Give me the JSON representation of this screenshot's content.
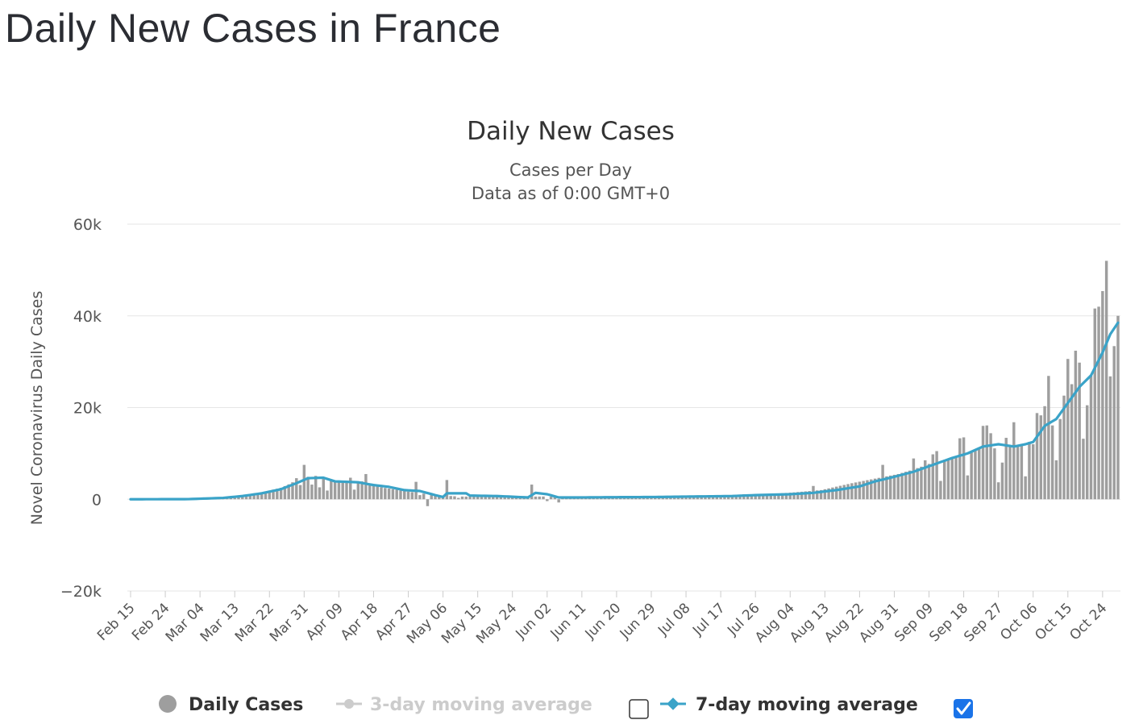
{
  "page": {
    "heading": "Daily New Cases in France"
  },
  "colors": {
    "bars": "#9e9e9e",
    "line": "#3aa3c8",
    "hidden": "#cccccc",
    "grid": "#e6e6e6",
    "checkbox": "#1a73e8"
  },
  "chart_data": {
    "type": "bar+line",
    "title": "Daily New Cases",
    "subtitle": [
      "Cases per Day",
      "Data as of 0:00 GMT+0"
    ],
    "ylabel": "Novel Coronavirus Daily Cases",
    "xlabel": "",
    "ylim": [
      -20000,
      60000
    ],
    "yticks": [
      -20000,
      0,
      20000,
      40000,
      60000
    ],
    "ytick_labels": [
      "−20k",
      "0",
      "20k",
      "40k",
      "60k"
    ],
    "x_start": "Feb 15",
    "x_end": "Oct 28",
    "x_tick_labels": [
      "Feb 15",
      "Feb 24",
      "Mar 04",
      "Mar 13",
      "Mar 22",
      "Mar 31",
      "Apr 09",
      "Apr 18",
      "Apr 27",
      "May 06",
      "May 15",
      "May 24",
      "Jun 02",
      "Jun 11",
      "Jun 20",
      "Jun 29",
      "Jul 08",
      "Jul 17",
      "Jul 26",
      "Aug 04",
      "Aug 13",
      "Aug 22",
      "Aug 31",
      "Sep 09",
      "Sep 18",
      "Sep 27",
      "Oct 06",
      "Oct 15",
      "Oct 24"
    ],
    "grid": true,
    "legend_position": "bottom",
    "series": [
      {
        "name": "Daily Cases",
        "kind": "bar",
        "visible": true,
        "anchors": [
          [
            "Feb 15",
            0
          ],
          [
            "Mar 01",
            50
          ],
          [
            "Mar 10",
            300
          ],
          [
            "Mar 15",
            800
          ],
          [
            "Mar 20",
            1500
          ],
          [
            "Mar 25",
            2500
          ],
          [
            "Mar 29",
            4000
          ],
          [
            "Apr 02",
            4500
          ],
          [
            "Apr 08",
            4000
          ],
          [
            "Apr 14",
            3600
          ],
          [
            "Apr 20",
            2600
          ],
          [
            "Apr 26",
            1800
          ],
          [
            "May 02",
            1100
          ],
          [
            "May 06",
            800
          ],
          [
            "May 10",
            600
          ],
          [
            "May 20",
            500
          ],
          [
            "Jun 01",
            600
          ],
          [
            "Jun 10",
            450
          ],
          [
            "Jun 20",
            450
          ],
          [
            "Jul 01",
            500
          ],
          [
            "Jul 15",
            600
          ],
          [
            "Jul 26",
            900
          ],
          [
            "Aug 05",
            1500
          ],
          [
            "Aug 12",
            2000
          ],
          [
            "Aug 20",
            3500
          ],
          [
            "Aug 26",
            4500
          ],
          [
            "Sep 01",
            5500
          ],
          [
            "Sep 05",
            6500
          ],
          [
            "Sep 10",
            8000
          ],
          [
            "Sep 15",
            9000
          ],
          [
            "Sep 20",
            10500
          ],
          [
            "Sep 25",
            12000
          ],
          [
            "Sep 30",
            11500
          ],
          [
            "Oct 03",
            12000
          ],
          [
            "Oct 07",
            13000
          ],
          [
            "Oct 10",
            16000
          ],
          [
            "Oct 13",
            17500
          ],
          [
            "Oct 16",
            22000
          ],
          [
            "Oct 19",
            25000
          ],
          [
            "Oct 22",
            28000
          ],
          [
            "Oct 25",
            38000
          ],
          [
            "Oct 28",
            40000
          ]
        ],
        "spikes": [
          [
            "Mar 28",
            3700
          ],
          [
            "Mar 29",
            4600
          ],
          [
            "Mar 30",
            3100
          ],
          [
            "Mar 31",
            7500
          ],
          [
            "Apr 01",
            4900
          ],
          [
            "Apr 02",
            3200
          ],
          [
            "Apr 03",
            5100
          ],
          [
            "Apr 04",
            2600
          ],
          [
            "Apr 05",
            4500
          ],
          [
            "Apr 06",
            1900
          ],
          [
            "Apr 12",
            4700
          ],
          [
            "Apr 13",
            2100
          ],
          [
            "Apr 15",
            3900
          ],
          [
            "Apr 16",
            5500
          ],
          [
            "Apr 29",
            3800
          ],
          [
            "Apr 30",
            900
          ],
          [
            "May 02",
            -1500
          ],
          [
            "May 07",
            4200
          ],
          [
            "May 10",
            300
          ],
          [
            "May 29",
            3200
          ],
          [
            "Jun 02",
            -400
          ],
          [
            "Jun 05",
            -700
          ],
          [
            "Jul 23",
            1100
          ],
          [
            "Aug 10",
            2900
          ],
          [
            "Aug 28",
            7500
          ],
          [
            "Sep 05",
            8900
          ],
          [
            "Sep 08",
            8500
          ],
          [
            "Sep 10",
            9800
          ],
          [
            "Sep 11",
            10500
          ],
          [
            "Sep 12",
            4000
          ],
          [
            "Sep 17",
            13300
          ],
          [
            "Sep 18",
            13500
          ],
          [
            "Sep 19",
            5200
          ],
          [
            "Sep 23",
            16000
          ],
          [
            "Sep 24",
            16100
          ],
          [
            "Sep 25",
            14400
          ],
          [
            "Sep 26",
            11100
          ],
          [
            "Sep 27",
            3700
          ],
          [
            "Sep 28",
            8000
          ],
          [
            "Sep 29",
            13400
          ],
          [
            "Oct 01",
            16800
          ],
          [
            "Oct 04",
            5000
          ],
          [
            "Oct 06",
            12000
          ],
          [
            "Oct 07",
            18800
          ],
          [
            "Oct 08",
            18300
          ],
          [
            "Oct 09",
            20300
          ],
          [
            "Oct 10",
            26900
          ],
          [
            "Oct 11",
            16100
          ],
          [
            "Oct 12",
            8500
          ],
          [
            "Oct 14",
            22600
          ],
          [
            "Oct 15",
            30600
          ],
          [
            "Oct 16",
            25100
          ],
          [
            "Oct 17",
            32400
          ],
          [
            "Oct 18",
            29800
          ],
          [
            "Oct 19",
            13200
          ],
          [
            "Oct 20",
            20500
          ],
          [
            "Oct 22",
            41600
          ],
          [
            "Oct 23",
            42000
          ],
          [
            "Oct 24",
            45400
          ],
          [
            "Oct 25",
            52000
          ],
          [
            "Oct 26",
            26800
          ],
          [
            "Oct 27",
            33400
          ]
        ]
      },
      {
        "name": "3-day moving average",
        "kind": "line",
        "visible": false
      },
      {
        "name": "7-day moving average",
        "kind": "line",
        "visible": true,
        "anchors": [
          [
            "Feb 15",
            0
          ],
          [
            "Mar 01",
            30
          ],
          [
            "Mar 10",
            300
          ],
          [
            "Mar 15",
            700
          ],
          [
            "Mar 20",
            1300
          ],
          [
            "Mar 25",
            2200
          ],
          [
            "Mar 29",
            3500
          ],
          [
            "Apr 01",
            4600
          ],
          [
            "Apr 05",
            4700
          ],
          [
            "Apr 08",
            3900
          ],
          [
            "Apr 14",
            3700
          ],
          [
            "Apr 18",
            3100
          ],
          [
            "Apr 22",
            2700
          ],
          [
            "Apr 26",
            2000
          ],
          [
            "Apr 30",
            1800
          ],
          [
            "May 04",
            900
          ],
          [
            "May 06",
            500
          ],
          [
            "May 07",
            1300
          ],
          [
            "May 12",
            1300
          ],
          [
            "May 13",
            800
          ],
          [
            "May 20",
            700
          ],
          [
            "May 28",
            400
          ],
          [
            "May 30",
            1400
          ],
          [
            "Jun 02",
            1100
          ],
          [
            "Jun 05",
            400
          ],
          [
            "Jun 10",
            400
          ],
          [
            "Jun 20",
            450
          ],
          [
            "Jul 01",
            500
          ],
          [
            "Jul 10",
            600
          ],
          [
            "Jul 20",
            700
          ],
          [
            "Jul 26",
            900
          ],
          [
            "Aug 04",
            1100
          ],
          [
            "Aug 10",
            1400
          ],
          [
            "Aug 16",
            2000
          ],
          [
            "Aug 22",
            2800
          ],
          [
            "Aug 26",
            3900
          ],
          [
            "Aug 31",
            4900
          ],
          [
            "Sep 05",
            6000
          ],
          [
            "Sep 10",
            7500
          ],
          [
            "Sep 15",
            9000
          ],
          [
            "Sep 19",
            10000
          ],
          [
            "Sep 23",
            11500
          ],
          [
            "Sep 27",
            12000
          ],
          [
            "Oct 01",
            11500
          ],
          [
            "Oct 04",
            12000
          ],
          [
            "Oct 06",
            12500
          ],
          [
            "Oct 09",
            16000
          ],
          [
            "Oct 12",
            17500
          ],
          [
            "Oct 15",
            21000
          ],
          [
            "Oct 18",
            24500
          ],
          [
            "Oct 21",
            27000
          ],
          [
            "Oct 24",
            32000
          ],
          [
            "Oct 26",
            36000
          ],
          [
            "Oct 28",
            38500
          ]
        ]
      }
    ]
  },
  "legend": {
    "items": [
      {
        "label": "Daily Cases",
        "active": true
      },
      {
        "label": "3-day moving average",
        "active": false,
        "checked": false
      },
      {
        "label": "7-day moving average",
        "active": true,
        "checked": true
      }
    ]
  }
}
